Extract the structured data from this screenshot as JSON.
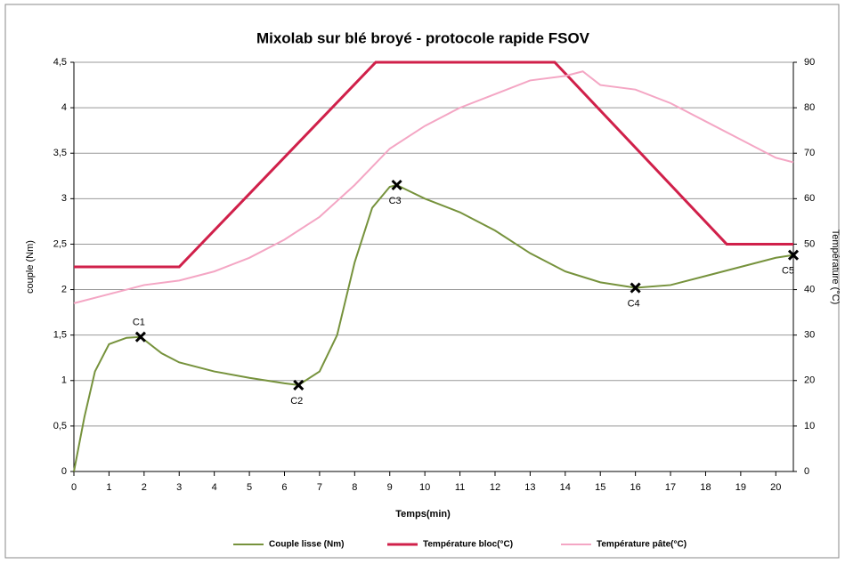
{
  "chart_data": {
    "type": "line",
    "title": "Mixolab sur blé broyé  - protocole rapide FSOV",
    "xlabel": "Temps(min)",
    "ylabel": "couple (Nm)",
    "y2label": "Température (°C)",
    "xlim": [
      0,
      20.5
    ],
    "xticks": [
      0,
      1,
      2,
      3,
      4,
      5,
      6,
      7,
      8,
      9,
      10,
      11,
      12,
      13,
      14,
      15,
      16,
      17,
      18,
      19,
      20
    ],
    "ylim": [
      0,
      4.5
    ],
    "yticks": [
      0,
      {
        "value": 0.5,
        "label": "0,5"
      },
      1,
      {
        "value": 1.5,
        "label": "1,5"
      },
      2,
      {
        "value": 2.5,
        "label": "2,5"
      },
      3,
      {
        "value": 3.5,
        "label": "3,5"
      },
      4,
      {
        "value": 4.5,
        "label": "4,5"
      }
    ],
    "y2lim": [
      0,
      90
    ],
    "y2ticks": [
      0,
      10,
      20,
      30,
      40,
      50,
      60,
      70,
      80,
      90
    ],
    "grid": true,
    "legend": "bottom",
    "series": [
      {
        "name": "Couple lisse (Nm)",
        "color": "#76923c",
        "axis": "y",
        "x": [
          0,
          0.3,
          0.6,
          1,
          1.5,
          1.9,
          2.5,
          3,
          4,
          5,
          6,
          6.4,
          7,
          7.5,
          8,
          8.5,
          9,
          9.2,
          10,
          11,
          12,
          13,
          14,
          15,
          16,
          17,
          18,
          19,
          20,
          20.5
        ],
        "values": [
          0,
          0.6,
          1.1,
          1.4,
          1.47,
          1.48,
          1.3,
          1.2,
          1.1,
          1.03,
          0.97,
          0.95,
          1.1,
          1.5,
          2.3,
          2.9,
          3.13,
          3.15,
          3,
          2.85,
          2.65,
          2.4,
          2.2,
          2.08,
          2.02,
          2.05,
          2.15,
          2.25,
          2.35,
          2.38
        ]
      },
      {
        "name": "Température bloc(°C)",
        "color": "#d0204a",
        "axis": "y2",
        "x": [
          0,
          3,
          8.6,
          13.7,
          18.6,
          20.5
        ],
        "values": [
          45,
          45,
          90,
          90,
          50,
          50
        ]
      },
      {
        "name": "Température pâte(°C)",
        "color": "#f4a6c4",
        "axis": "y2",
        "x": [
          0,
          1,
          2,
          3,
          4,
          5,
          6,
          7,
          8,
          9,
          10,
          11,
          12,
          13,
          14,
          14.5,
          15,
          16,
          17,
          18,
          19,
          20,
          20.5
        ],
        "values": [
          37,
          39,
          41,
          42,
          44,
          47,
          51,
          56,
          63,
          71,
          76,
          80,
          83,
          86,
          87,
          88,
          85,
          84,
          81,
          77,
          73,
          69,
          68
        ]
      }
    ],
    "annotations": [
      {
        "text": "C1",
        "x": 1.9,
        "y": 1.48
      },
      {
        "text": "C2",
        "x": 6.4,
        "y": 0.95
      },
      {
        "text": "C3",
        "x": 9.2,
        "y": 3.15
      },
      {
        "text": "C4",
        "x": 16,
        "y": 2.02
      },
      {
        "text": "C5",
        "x": 20.5,
        "y": 2.38
      }
    ]
  }
}
